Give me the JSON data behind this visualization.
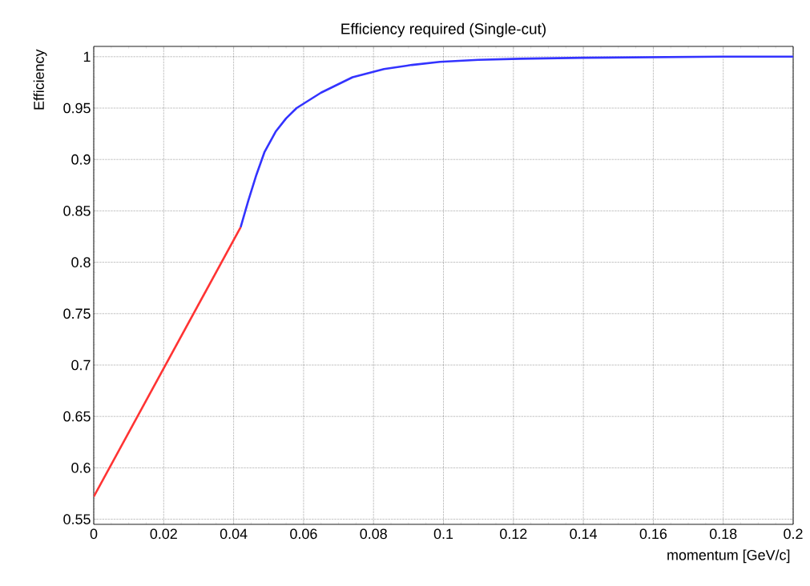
{
  "chart_data": {
    "type": "line",
    "title": "Efficiency required  (Single-cut)",
    "xlabel": "momentum [GeV/c]",
    "ylabel": "Efficiency",
    "series": [
      {
        "color": "#ff3333",
        "x": [
          0,
          0.042
        ],
        "values": [
          0.572,
          0.834
        ]
      },
      {
        "color": "#3333ff",
        "x": [
          0.042,
          0.0442,
          0.0465,
          0.0488,
          0.052,
          0.055,
          0.058,
          0.065,
          0.074,
          0.083,
          0.091,
          0.099,
          0.11,
          0.122,
          0.14,
          0.16,
          0.18,
          0.2
        ],
        "values": [
          0.834,
          0.86,
          0.885,
          0.907,
          0.927,
          0.94,
          0.95,
          0.965,
          0.98,
          0.988,
          0.992,
          0.995,
          0.997,
          0.998,
          0.999,
          0.9995,
          1.0,
          1.0
        ]
      }
    ],
    "xlim": [
      0,
      0.2
    ],
    "ylim": [
      0.545,
      1.01
    ],
    "xticks": [
      0,
      0.02,
      0.04,
      0.06,
      0.08,
      0.1,
      0.12,
      0.14,
      0.16,
      0.18,
      0.2
    ],
    "yticks": [
      0.55,
      0.6,
      0.65,
      0.7,
      0.75,
      0.8,
      0.85,
      0.9,
      0.95,
      1
    ],
    "grid": true
  }
}
